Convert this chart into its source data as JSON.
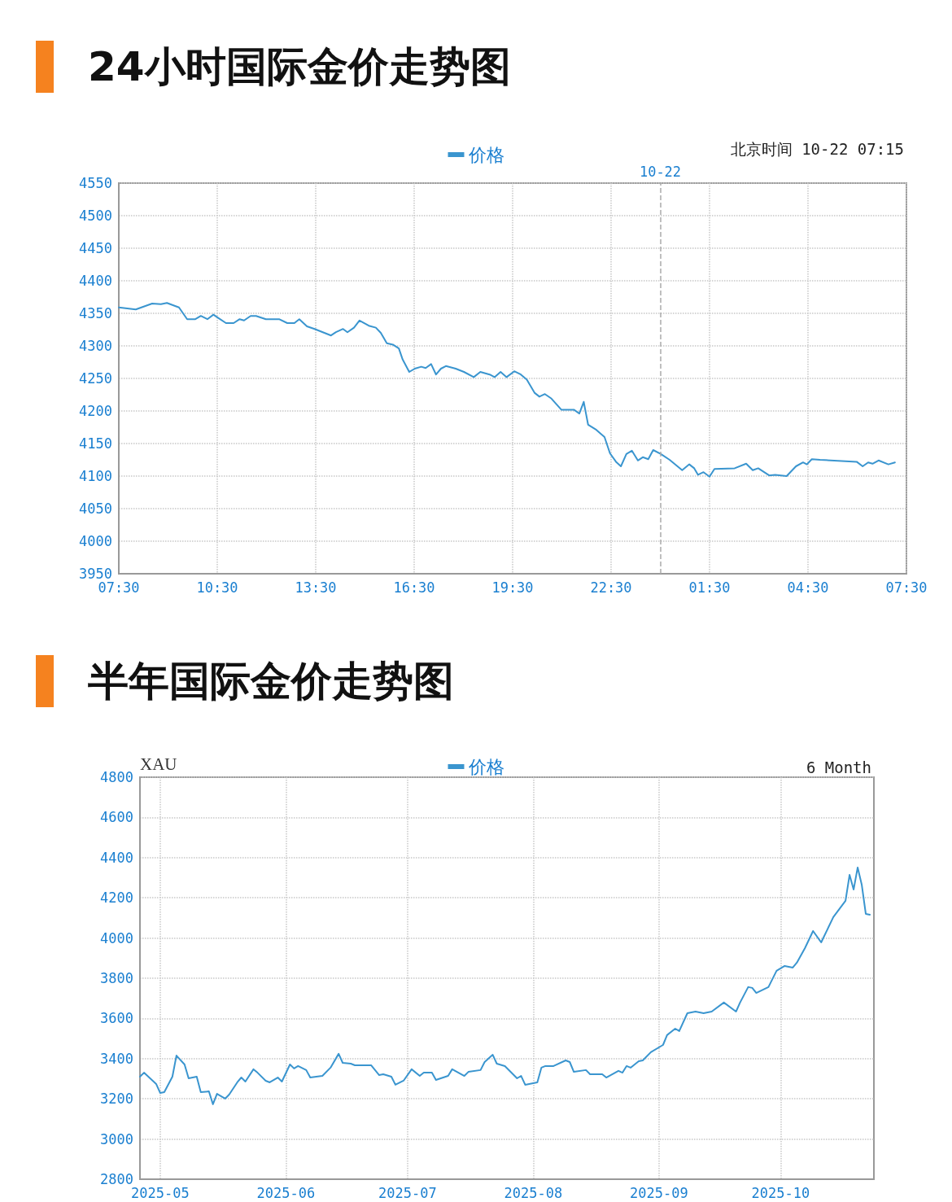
{
  "chart_data": [
    {
      "type": "line",
      "title": "24小时国际金价走势图",
      "subtitle": "北京时间 10-22 07:15",
      "legend": "top",
      "grid": true,
      "marker": "none",
      "line_style": "solid",
      "xlim": [
        "2025-10-21T07:30",
        "2025-10-22T07:30"
      ],
      "xticks": [
        {
          "value": "2025-10-21T07:30",
          "label": "07:30"
        },
        {
          "value": "2025-10-21T10:30",
          "label": "10:30"
        },
        {
          "value": "2025-10-21T13:30",
          "label": "13:30"
        },
        {
          "value": "2025-10-21T16:30",
          "label": "16:30"
        },
        {
          "value": "2025-10-21T19:30",
          "label": "19:30"
        },
        {
          "value": "2025-10-21T22:30",
          "label": "22:30"
        },
        {
          "value": "2025-10-22T01:30",
          "label": "01:30"
        },
        {
          "value": "2025-10-22T04:30",
          "label": "04:30"
        },
        {
          "value": "2025-10-22T07:30",
          "label": "07:30"
        }
      ],
      "ylim": [
        3950,
        4550
      ],
      "yticks": [
        3950,
        4000,
        4050,
        4100,
        4150,
        4200,
        4250,
        4300,
        4350,
        4400,
        4450,
        4500,
        4550
      ],
      "ref_lines": [
        {
          "axis": "x",
          "value": "2025-10-22T00:00",
          "label": "10-22",
          "color": "#aaaaaa",
          "line_style": "dashed"
        }
      ],
      "series": [
        {
          "name": "价格",
          "color": "#3a95cf",
          "x": [
            "2025-10-21T07:30",
            "2025-10-21T08:01",
            "2025-10-21T08:31",
            "2025-10-21T08:47",
            "2025-10-21T08:58",
            "2025-10-21T09:20",
            "2025-10-21T09:35",
            "2025-10-21T09:50",
            "2025-10-21T10:00",
            "2025-10-21T10:12",
            "2025-10-21T10:23",
            "2025-10-21T10:30",
            "2025-10-21T10:46",
            "2025-10-21T11:00",
            "2025-10-21T11:11",
            "2025-10-21T11:19",
            "2025-10-21T11:31",
            "2025-10-21T11:41",
            "2025-10-21T11:59",
            "2025-10-21T12:23",
            "2025-10-21T12:38",
            "2025-10-21T12:51",
            "2025-10-21T13:00",
            "2025-10-21T13:14",
            "2025-10-21T13:28",
            "2025-10-21T13:43",
            "2025-10-21T13:58",
            "2025-10-21T14:07",
            "2025-10-21T14:20",
            "2025-10-21T14:28",
            "2025-10-21T14:40",
            "2025-10-21T14:50",
            "2025-10-21T15:07",
            "2025-10-21T15:20",
            "2025-10-21T15:29",
            "2025-10-21T15:40",
            "2025-10-21T15:51",
            "2025-10-21T16:02",
            "2025-10-21T16:09",
            "2025-10-21T16:21",
            "2025-10-21T16:31",
            "2025-10-21T16:43",
            "2025-10-21T16:51",
            "2025-10-21T17:01",
            "2025-10-21T17:10",
            "2025-10-21T17:19",
            "2025-10-21T17:28",
            "2025-10-21T17:46",
            "2025-10-21T18:01",
            "2025-10-21T18:19",
            "2025-10-21T18:31",
            "2025-10-21T18:48",
            "2025-10-21T18:57",
            "2025-10-21T19:08",
            "2025-10-21T19:19",
            "2025-10-21T19:33",
            "2025-10-21T19:45",
            "2025-10-21T19:56",
            "2025-10-21T20:10",
            "2025-10-21T20:19",
            "2025-10-21T20:29",
            "2025-10-21T20:41",
            "2025-10-21T20:59",
            "2025-10-21T21:22",
            "2025-10-21T21:32",
            "2025-10-21T21:40",
            "2025-10-21T21:48",
            "2025-10-21T22:03",
            "2025-10-21T22:18",
            "2025-10-21T22:28",
            "2025-10-21T22:39",
            "2025-10-21T22:48",
            "2025-10-21T22:58",
            "2025-10-21T23:08",
            "2025-10-21T23:19",
            "2025-10-21T23:28",
            "2025-10-21T23:38",
            "2025-10-21T23:47",
            "2025-10-22T00:01",
            "2025-10-22T00:17",
            "2025-10-22T00:40",
            "2025-10-22T00:53",
            "2025-10-22T01:02",
            "2025-10-22T01:09",
            "2025-10-22T01:19",
            "2025-10-22T01:30",
            "2025-10-22T01:39",
            "2025-10-22T02:16",
            "2025-10-22T02:37",
            "2025-10-22T02:49",
            "2025-10-22T02:59",
            "2025-10-22T03:19",
            "2025-10-22T03:30",
            "2025-10-22T03:51",
            "2025-10-22T04:08",
            "2025-10-22T04:21",
            "2025-10-22T04:28",
            "2025-10-22T04:37",
            "2025-10-22T04:52",
            "2025-10-22T05:59",
            "2025-10-22T06:10",
            "2025-10-22T06:20",
            "2025-10-22T06:28",
            "2025-10-22T06:39",
            "2025-10-22T06:57",
            "2025-10-22T07:09"
          ],
          "values": [
            4359,
            4356,
            4365,
            4364,
            4366,
            4359,
            4341,
            4341,
            4346,
            4341,
            4348,
            4344,
            4335,
            4335,
            4341,
            4339,
            4346,
            4346,
            4341,
            4341,
            4335,
            4335,
            4341,
            4330,
            4326,
            4321,
            4316,
            4321,
            4326,
            4321,
            4328,
            4339,
            4331,
            4328,
            4320,
            4304,
            4302,
            4296,
            4279,
            4260,
            4265,
            4268,
            4266,
            4272,
            4256,
            4265,
            4269,
            4265,
            4260,
            4252,
            4260,
            4256,
            4252,
            4260,
            4252,
            4261,
            4256,
            4248,
            4228,
            4222,
            4226,
            4219,
            4202,
            4202,
            4196,
            4214,
            4179,
            4171,
            4160,
            4135,
            4122,
            4115,
            4134,
            4139,
            4124,
            4129,
            4126,
            4140,
            4134,
            4125,
            4109,
            4118,
            4112,
            4102,
            4106,
            4099,
            4111,
            4112,
            4119,
            4109,
            4112,
            4101,
            4102,
            4100,
            4115,
            4121,
            4118,
            4126,
            4125,
            4122,
            4115,
            4121,
            4119,
            4124,
            4118,
            4121
          ]
        }
      ]
    },
    {
      "type": "line",
      "title": "半年国际金价走势图",
      "subtitle": "6 Month",
      "ylabel": "XAU",
      "legend": "top",
      "grid": true,
      "marker": "none",
      "line_style": "solid",
      "xlim": [
        "2025-04-26",
        "2025-10-24"
      ],
      "xticks": [
        {
          "value": "2025-05-01",
          "label": "2025-05"
        },
        {
          "value": "2025-06-01",
          "label": "2025-06"
        },
        {
          "value": "2025-07-01",
          "label": "2025-07"
        },
        {
          "value": "2025-08-01",
          "label": "2025-08"
        },
        {
          "value": "2025-09-01",
          "label": "2025-09"
        },
        {
          "value": "2025-10-01",
          "label": "2025-10"
        }
      ],
      "ylim": [
        2800,
        4800
      ],
      "yticks": [
        2800,
        3000,
        3200,
        3400,
        3600,
        3800,
        4000,
        4200,
        4400,
        4600,
        4800
      ],
      "series": [
        {
          "name": "价格",
          "color": "#3a95cf",
          "x": [
            "2025-04-26",
            "2025-04-27",
            "2025-04-30",
            "2025-05-01",
            "2025-05-02",
            "2025-05-04",
            "2025-05-05",
            "2025-05-07",
            "2025-05-08",
            "2025-05-10",
            "2025-05-11",
            "2025-05-13",
            "2025-05-14",
            "2025-05-15",
            "2025-05-17",
            "2025-05-18",
            "2025-05-20",
            "2025-05-21",
            "2025-05-22",
            "2025-05-24",
            "2025-05-25",
            "2025-05-27",
            "2025-05-28",
            "2025-05-30",
            "2025-05-31",
            "2025-06-02",
            "2025-06-03",
            "2025-06-04",
            "2025-06-06",
            "2025-06-07",
            "2025-06-10",
            "2025-06-12",
            "2025-06-14",
            "2025-06-15",
            "2025-06-17",
            "2025-06-18",
            "2025-06-22",
            "2025-06-24",
            "2025-06-25",
            "2025-06-27",
            "2025-06-28",
            "2025-06-30",
            "2025-07-02",
            "2025-07-04",
            "2025-07-05",
            "2025-07-07",
            "2025-07-08",
            "2025-07-11",
            "2025-07-12",
            "2025-07-15",
            "2025-07-16",
            "2025-07-19",
            "2025-07-20",
            "2025-07-22",
            "2025-07-23",
            "2025-07-25",
            "2025-07-28",
            "2025-07-29",
            "2025-07-30",
            "2025-08-02",
            "2025-08-03",
            "2025-08-04",
            "2025-08-06",
            "2025-08-09",
            "2025-08-10",
            "2025-08-11",
            "2025-08-14",
            "2025-08-15",
            "2025-08-18",
            "2025-08-19",
            "2025-08-22",
            "2025-08-23",
            "2025-08-24",
            "2025-08-25",
            "2025-08-27",
            "2025-08-28",
            "2025-08-30",
            "2025-09-02",
            "2025-09-03",
            "2025-09-05",
            "2025-09-06",
            "2025-09-08",
            "2025-09-10",
            "2025-09-12",
            "2025-09-14",
            "2025-09-17",
            "2025-09-20",
            "2025-09-21",
            "2025-09-23",
            "2025-09-24",
            "2025-09-25",
            "2025-09-28",
            "2025-09-30",
            "2025-10-02",
            "2025-10-04",
            "2025-10-05",
            "2025-10-07",
            "2025-10-09",
            "2025-10-11",
            "2025-10-14",
            "2025-10-17",
            "2025-10-18",
            "2025-10-19",
            "2025-10-20",
            "2025-10-21",
            "2025-10-22",
            "2025-10-23"
          ],
          "values": [
            3310,
            3330,
            3274,
            3229,
            3233,
            3310,
            3415,
            3371,
            3302,
            3310,
            3233,
            3237,
            3173,
            3225,
            3201,
            3221,
            3282,
            3306,
            3286,
            3347,
            3330,
            3290,
            3282,
            3306,
            3286,
            3371,
            3351,
            3363,
            3343,
            3306,
            3314,
            3355,
            3424,
            3379,
            3375,
            3367,
            3367,
            3318,
            3322,
            3310,
            3270,
            3290,
            3347,
            3314,
            3330,
            3330,
            3294,
            3314,
            3347,
            3314,
            3334,
            3343,
            3383,
            3419,
            3375,
            3363,
            3302,
            3314,
            3270,
            3282,
            3355,
            3363,
            3363,
            3391,
            3383,
            3334,
            3343,
            3322,
            3322,
            3306,
            3339,
            3330,
            3363,
            3355,
            3387,
            3391,
            3432,
            3468,
            3517,
            3549,
            3537,
            3626,
            3634,
            3626,
            3634,
            3679,
            3634,
            3679,
            3756,
            3752,
            3727,
            3756,
            3837,
            3861,
            3853,
            3877,
            3950,
            4035,
            3978,
            4104,
            4185,
            4314,
            4241,
            4351,
            4266,
            4120,
            4116
          ]
        }
      ]
    }
  ]
}
